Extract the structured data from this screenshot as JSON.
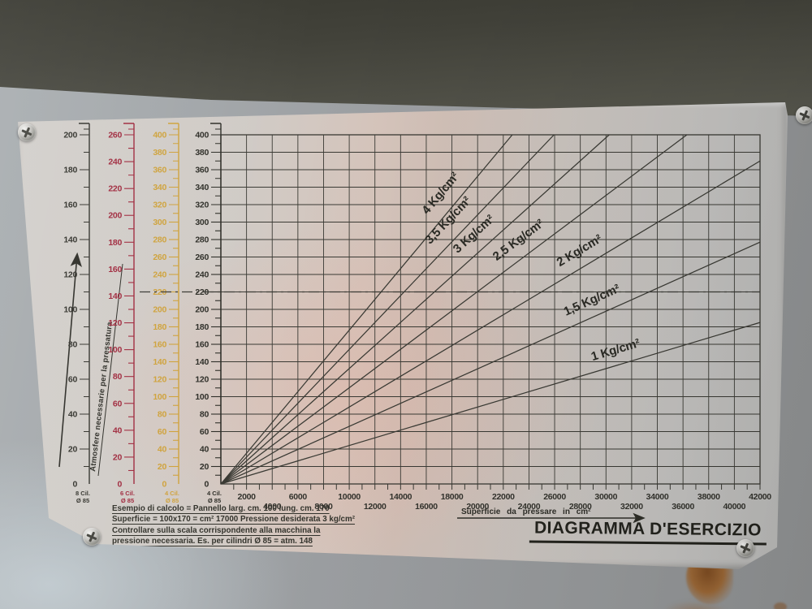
{
  "colors": {
    "ink": "#3a3a34",
    "red_scale": "#a02a3e",
    "yellow_scale": "#cfa23b",
    "black_scale": "#33332d",
    "plate_silver": "#cbc7c2",
    "plate_reflection_pink": "#ecb09e",
    "wall_gray": "#9b9ea0",
    "wall_bottom_left": "#bac2c7",
    "top_band_dark": "#4a4a43",
    "rust_brown": "#8a5a30"
  },
  "plate": {
    "title": "DIAGRAMMA D'ESERCIZIO",
    "x_axis_label": "Superficie da pressare in cm²",
    "y_axis_label": "Atmosfere necessarie per la pressatura",
    "example_lines": [
      "Esempio di calcolo = Pannello larg. cm. 100 lung. cm. 170",
      "Superficie = 100x170 = cm² 17000 Pressione desiderata 3 kg/cm²",
      "Controllare sulla scala corrispondente alla macchina la",
      "pressione necessaria. Es. per cilindri Ø 85 = atm. 148"
    ],
    "scales": [
      {
        "name": "scala-8-cilindri",
        "footer": [
          "8 Cil.",
          "Ø 85"
        ],
        "color": "#33332d",
        "max": 200
      },
      {
        "name": "scala-6-cilindri",
        "footer": [
          "6 Cil.",
          "Ø 85"
        ],
        "color": "#a02a3e",
        "max": 260
      },
      {
        "name": "scala-4-cilindri-gialla",
        "footer": [
          "4 Cil.",
          "Ø 85"
        ],
        "color": "#cfa23b",
        "max": 400
      },
      {
        "name": "scala-4-cilindri-nera",
        "footer": [
          "4 Cil.",
          "Ø 85"
        ],
        "color": "#2e2e28",
        "max": 400
      }
    ]
  },
  "chart_data": {
    "type": "line",
    "title": "DIAGRAMMA D'ESERCIZIO",
    "xlabel": "Superficie da pressare in cm²",
    "ylabel": "Atmosfere necessarie per la pressatura",
    "xlim": [
      0,
      42000
    ],
    "ylim": [
      0,
      400
    ],
    "x_label_step": 2000,
    "x_minor_step": 1000,
    "y_grid_step": 20,
    "y_label_step": 20,
    "grid": true,
    "legend_position": "labels-on-lines",
    "series": [
      {
        "name": "4 Kg/cm²",
        "kg_per_cm2": 4.0,
        "points": [
          [
            0,
            0
          ],
          [
            22700,
            400
          ]
        ]
      },
      {
        "name": "3,5 Kg/cm²",
        "kg_per_cm2": 3.5,
        "points": [
          [
            0,
            0
          ],
          [
            25950,
            400
          ]
        ]
      },
      {
        "name": "3 Kg/cm²",
        "kg_per_cm2": 3.0,
        "points": [
          [
            0,
            0
          ],
          [
            30250,
            400
          ]
        ]
      },
      {
        "name": "2,5 Kg/cm²",
        "kg_per_cm2": 2.5,
        "points": [
          [
            0,
            0
          ],
          [
            36300,
            400
          ]
        ]
      },
      {
        "name": "2 Kg/cm²",
        "kg_per_cm2": 2.0,
        "points": [
          [
            0,
            0
          ],
          [
            42000,
            370
          ]
        ]
      },
      {
        "name": "1,5 Kg/cm²",
        "kg_per_cm2": 1.5,
        "points": [
          [
            0,
            0
          ],
          [
            42000,
            277
          ]
        ]
      },
      {
        "name": "1 Kg/cm²",
        "kg_per_cm2": 1.0,
        "points": [
          [
            0,
            0
          ],
          [
            42000,
            185
          ]
        ]
      }
    ],
    "reference_line": {
      "y": 220,
      "style": "dash-dot"
    }
  }
}
